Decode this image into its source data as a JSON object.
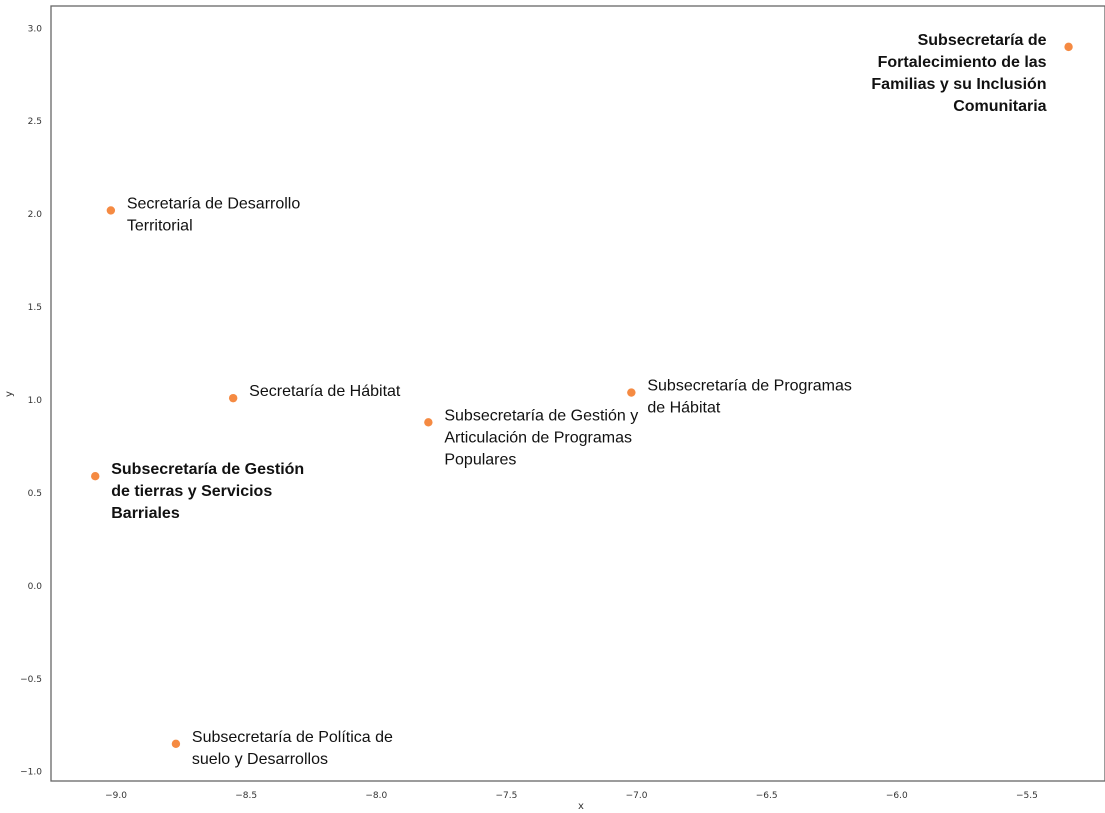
{
  "chart_data": {
    "type": "scatter",
    "title": "",
    "xlabel": "x",
    "ylabel": "y",
    "xlim": [
      -9.25,
      -5.2
    ],
    "ylim": [
      -1.05,
      3.12
    ],
    "x_ticks": [
      {
        "value": -9.0,
        "label": "−9.0"
      },
      {
        "value": -8.5,
        "label": "−8.5"
      },
      {
        "value": -8.0,
        "label": "−8.0"
      },
      {
        "value": -7.5,
        "label": "−7.5"
      },
      {
        "value": -7.0,
        "label": "−7.0"
      },
      {
        "value": -6.5,
        "label": "−6.5"
      },
      {
        "value": -6.0,
        "label": "−6.0"
      },
      {
        "value": -5.5,
        "label": "−5.5"
      }
    ],
    "y_ticks": [
      {
        "value": 3.0,
        "label": "3.0"
      },
      {
        "value": 2.5,
        "label": "2.5"
      },
      {
        "value": 2.0,
        "label": "2.0"
      },
      {
        "value": 1.5,
        "label": "1.5"
      },
      {
        "value": 1.0,
        "label": "1.0"
      },
      {
        "value": 0.5,
        "label": "0.5"
      },
      {
        "value": 0.0,
        "label": "0.0"
      },
      {
        "value": -0.5,
        "label": "−0.5"
      },
      {
        "value": -1.0,
        "label": "−1.0"
      }
    ],
    "grid": false,
    "marker_color": "#f58a42",
    "points": [
      {
        "x": -5.34,
        "y": 2.9,
        "label_lines": [
          "Subsecretaría de",
          "Fortalecimiento de las",
          "Familias y su Inclusión",
          "Comunitaria"
        ],
        "bold": true,
        "label_side": "left"
      },
      {
        "x": -9.02,
        "y": 2.02,
        "label_lines": [
          "Secretaría de Desarrollo",
          "Territorial"
        ],
        "bold": false,
        "label_side": "right"
      },
      {
        "x": -8.55,
        "y": 1.01,
        "label_lines": [
          "Secretaría de Hábitat"
        ],
        "bold": false,
        "label_side": "right"
      },
      {
        "x": -7.02,
        "y": 1.04,
        "label_lines": [
          "Subsecretaría de Programas",
          "de Hábitat"
        ],
        "bold": false,
        "label_side": "right"
      },
      {
        "x": -7.8,
        "y": 0.88,
        "label_lines": [
          "Subsecretaría de Gestión y",
          "Articulación de Programas",
          "Populares"
        ],
        "bold": false,
        "label_side": "right"
      },
      {
        "x": -9.08,
        "y": 0.59,
        "label_lines": [
          "Subsecretaría de Gestión",
          "de tierras y Servicios",
          "Barriales"
        ],
        "bold": true,
        "label_side": "right"
      },
      {
        "x": -8.77,
        "y": -0.85,
        "label_lines": [
          "Subsecretaría de Política de",
          "suelo y Desarrollos"
        ],
        "bold": false,
        "label_side": "right"
      }
    ]
  }
}
